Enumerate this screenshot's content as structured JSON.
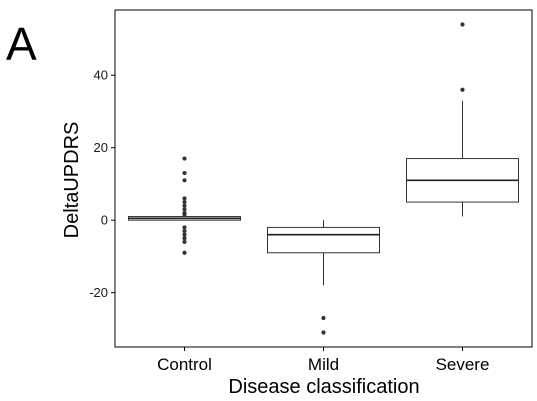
{
  "figure": {
    "panel_label": "A"
  },
  "chart_data": {
    "type": "box",
    "xlabel": "Disease classification",
    "ylabel": "DeltaUPDRS",
    "ylim": [
      -35,
      58
    ],
    "yticks": [
      -20,
      0,
      20,
      40
    ],
    "y_tick_labels": [
      "-20",
      "0",
      "20",
      "40"
    ],
    "grid": false,
    "legend": "none",
    "categories": [
      "Control",
      "Mild",
      "Severe"
    ],
    "boxes": [
      {
        "category": "Control",
        "min": 0,
        "q1": 0,
        "median": 0.5,
        "q3": 1,
        "max": 1,
        "outliers": [
          17,
          13,
          11,
          6,
          5,
          4,
          3,
          2,
          1.5,
          -2,
          -3,
          -4,
          -5,
          -6,
          -9
        ]
      },
      {
        "category": "Mild",
        "min": -18,
        "q1": -9,
        "median": -4,
        "q3": -2,
        "max": 0,
        "outliers": [
          -27,
          -31
        ]
      },
      {
        "category": "Severe",
        "min": 1,
        "q1": 5,
        "median": 11,
        "q3": 17,
        "max": 33,
        "outliers": [
          36,
          54
        ]
      }
    ]
  }
}
